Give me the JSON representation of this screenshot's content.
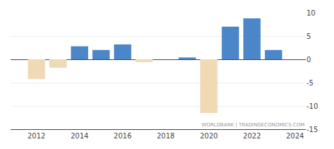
{
  "chart_data": {
    "type": "bar",
    "x": [
      2012,
      2013,
      2014,
      2015,
      2016,
      2017,
      2019,
      2020,
      2021,
      2022,
      2023
    ],
    "values": [
      -4.2,
      -1.8,
      2.8,
      2.0,
      3.2,
      -0.6,
      0.4,
      -11.5,
      7.0,
      8.8,
      2.0
    ],
    "colors": [
      "#f0d9b5",
      "#f0d9b5",
      "#4a86c8",
      "#4a86c8",
      "#4a86c8",
      "#f0d9b5",
      "#4a86c8",
      "#f0d9b5",
      "#4a86c8",
      "#4a86c8",
      "#4a86c8"
    ],
    "xlim": [
      2010.8,
      2024.5
    ],
    "xticks": [
      2012,
      2014,
      2016,
      2018,
      2020,
      2022,
      2024
    ],
    "ylim": [
      -15,
      10
    ],
    "yticks": [
      -15,
      -10,
      -5,
      0,
      5,
      10
    ],
    "grid": true,
    "annotations": [
      "WORLDBANK | TRADINGECONOMICS.COM"
    ]
  }
}
